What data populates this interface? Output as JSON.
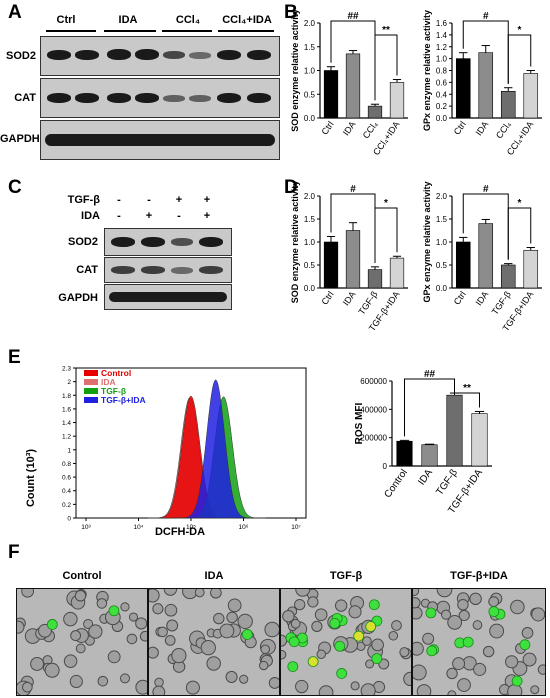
{
  "panels": {
    "A": "A",
    "B": "B",
    "C": "C",
    "D": "D",
    "E": "E",
    "F": "F"
  },
  "panel_a": {
    "lanes": [
      "Ctrl",
      "IDA",
      "CCl₄",
      "CCl₄+IDA"
    ],
    "rows": [
      "SOD2",
      "CAT",
      "GAPDH"
    ]
  },
  "panel_c": {
    "row_tgf": {
      "label": "TGF-β",
      "signs": [
        "-",
        "-",
        "+",
        "+"
      ]
    },
    "row_ida": {
      "label": "IDA",
      "signs": [
        "-",
        "+",
        "-",
        "+"
      ]
    },
    "rows": [
      "SOD2",
      "CAT",
      "GAPDH"
    ]
  },
  "panel_e_hist": {
    "ylabel": "Count (10³)",
    "xlabel": "DCFH-DA",
    "yticks": [
      "0",
      "0.2",
      "0.4",
      "0.6",
      "0.8",
      "1",
      "1.2",
      "1.4",
      "1.6",
      "1.8",
      "2",
      "2.3"
    ],
    "xticks": [
      "10³",
      "10⁴",
      "10⁵",
      "10⁶",
      "10⁷"
    ],
    "legend": [
      {
        "name": "Control",
        "color": "#e60000"
      },
      {
        "name": "IDA",
        "color": "#e07070"
      },
      {
        "name": "TGF-β",
        "color": "#10a010"
      },
      {
        "name": "TGF-β+IDA",
        "color": "#2020e0"
      }
    ]
  },
  "panel_f": {
    "labels": [
      "Control",
      "IDA",
      "TGF-β",
      "TGF-β+IDA"
    ]
  },
  "chart_data": [
    {
      "type": "bar",
      "id": "B-SOD",
      "categories": [
        "Ctrl",
        "IDA",
        "CCl₄",
        "CCl₄+IDA"
      ],
      "values": [
        1.0,
        1.35,
        0.25,
        0.75
      ],
      "errors": [
        0.08,
        0.07,
        0.04,
        0.06
      ],
      "ylabel": "SOD enzyme relative activity",
      "ylim": [
        0,
        2.0
      ],
      "yticks": [
        "0.0",
        "0.5",
        "1.0",
        "1.5",
        "2.0"
      ],
      "colors": [
        "#000000",
        "#8c8c8c",
        "#6e6e6e",
        "#d4d4d4"
      ],
      "sig": [
        {
          "text": "##",
          "from": 0,
          "to": 2
        },
        {
          "text": "**",
          "from": 2,
          "to": 3
        }
      ]
    },
    {
      "type": "bar",
      "id": "B-GPx",
      "categories": [
        "Ctrl",
        "IDA",
        "CCl₄",
        "CCl₄+IDA"
      ],
      "values": [
        1.0,
        1.1,
        0.45,
        0.75
      ],
      "errors": [
        0.1,
        0.12,
        0.06,
        0.05
      ],
      "ylabel": "GPx enzyme relative activity",
      "ylim": [
        0,
        1.6
      ],
      "yticks": [
        "0.0",
        "0.2",
        "0.4",
        "0.6",
        "0.8",
        "1.0",
        "1.2",
        "1.4",
        "1.6"
      ],
      "colors": [
        "#000000",
        "#8c8c8c",
        "#6e6e6e",
        "#d4d4d4"
      ],
      "sig": [
        {
          "text": "#",
          "from": 0,
          "to": 2
        },
        {
          "text": "*",
          "from": 2,
          "to": 3
        }
      ]
    },
    {
      "type": "bar",
      "id": "D-SOD",
      "categories": [
        "Ctrl",
        "IDA",
        "TGF-β",
        "TGF-β+IDA"
      ],
      "values": [
        1.0,
        1.25,
        0.4,
        0.65
      ],
      "errors": [
        0.12,
        0.17,
        0.06,
        0.04
      ],
      "ylabel": "SOD enzyme relative activity",
      "ylim": [
        0,
        2.0
      ],
      "yticks": [
        "0.0",
        "0.5",
        "1.0",
        "1.5",
        "2.0"
      ],
      "colors": [
        "#000000",
        "#8c8c8c",
        "#6e6e6e",
        "#d4d4d4"
      ],
      "sig": [
        {
          "text": "#",
          "from": 0,
          "to": 2
        },
        {
          "text": "*",
          "from": 2,
          "to": 3
        }
      ]
    },
    {
      "type": "bar",
      "id": "D-GPx",
      "categories": [
        "Ctrl",
        "IDA",
        "TGF-β",
        "TGF-β+IDA"
      ],
      "values": [
        1.0,
        1.4,
        0.5,
        0.82
      ],
      "errors": [
        0.1,
        0.09,
        0.03,
        0.06
      ],
      "ylabel": "GPx enzyme relative activity",
      "ylim": [
        0,
        2.0
      ],
      "yticks": [
        "0.0",
        "0.5",
        "1.0",
        "1.5",
        "2.0"
      ],
      "colors": [
        "#000000",
        "#8c8c8c",
        "#6e6e6e",
        "#d4d4d4"
      ],
      "sig": [
        {
          "text": "#",
          "from": 0,
          "to": 2
        },
        {
          "text": "*",
          "from": 2,
          "to": 3
        }
      ]
    },
    {
      "type": "bar",
      "id": "E-MFI",
      "categories": [
        "Control",
        "IDA",
        "TGF-β",
        "TGF-β+IDA"
      ],
      "values": [
        175000,
        150000,
        500000,
        370000
      ],
      "errors": [
        6000,
        4000,
        15000,
        15000
      ],
      "ylabel": "ROS MFI",
      "ylim": [
        0,
        600000
      ],
      "yticks": [
        "0",
        "200000",
        "400000",
        "600000"
      ],
      "colors": [
        "#000000",
        "#8c8c8c",
        "#6e6e6e",
        "#d4d4d4"
      ],
      "sig": [
        {
          "text": "##",
          "from": 0,
          "to": 2
        },
        {
          "text": "**",
          "from": 2,
          "to": 3
        }
      ]
    }
  ]
}
